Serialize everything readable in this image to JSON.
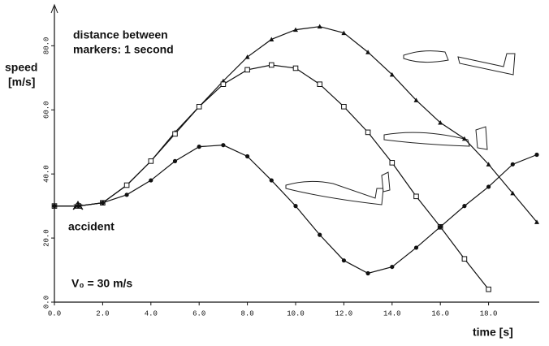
{
  "chart_data": {
    "type": "line",
    "ylabel": [
      "speed",
      "[m/s]"
    ],
    "xlabel": "time [s]",
    "annotations": [
      "distance between",
      "markers: 1 second",
      "accident",
      "V₀ = 30 m/s"
    ],
    "x": [
      0,
      1,
      2,
      3,
      4,
      5,
      6,
      7,
      8,
      9,
      10,
      11,
      12,
      13,
      14,
      15,
      16,
      17,
      18,
      19,
      20
    ],
    "series": [
      {
        "color": "#111111",
        "marker": "triangle",
        "values": [
          30,
          30,
          31,
          36.5,
          44,
          53,
          61,
          69,
          76.5,
          82,
          85,
          86,
          84,
          78,
          71,
          63,
          56,
          51,
          43,
          34,
          25
        ]
      },
      {
        "color": "#111111",
        "marker": "square",
        "values": [
          30,
          30,
          31,
          36.5,
          44,
          52.5,
          61,
          68,
          72.5,
          74,
          73,
          68,
          61,
          53,
          43.5,
          33,
          23.5,
          13.5,
          4,
          null,
          null
        ]
      },
      {
        "color": "#111111",
        "marker": "circle",
        "values": [
          30,
          30,
          31,
          33.5,
          38,
          44,
          48.5,
          49,
          45.5,
          38,
          30,
          21,
          13,
          9,
          11,
          17,
          23.5,
          30,
          36,
          43,
          46
        ]
      }
    ],
    "xlim": [
      0,
      20
    ],
    "ylim": [
      0,
      92
    ],
    "xticks": [
      {
        "value": 0,
        "label": "0.0"
      },
      {
        "value": 2,
        "label": "2.0"
      },
      {
        "value": 4,
        "label": "4.0"
      },
      {
        "value": 6,
        "label": "6.0"
      },
      {
        "value": 8,
        "label": "8.0"
      },
      {
        "value": 10,
        "label": "10.0"
      },
      {
        "value": 12,
        "label": "12.0"
      },
      {
        "value": 14,
        "label": "14.0"
      },
      {
        "value": 16,
        "label": "16.0"
      },
      {
        "value": 18,
        "label": "18.0"
      }
    ],
    "yticks": [
      {
        "value": 0,
        "label": "0.0"
      },
      {
        "value": 20,
        "label": "20.0"
      },
      {
        "value": 40,
        "label": "40.0"
      },
      {
        "value": 60,
        "label": "60.0"
      },
      {
        "value": 80,
        "label": "80.0"
      }
    ],
    "grid": false
  }
}
